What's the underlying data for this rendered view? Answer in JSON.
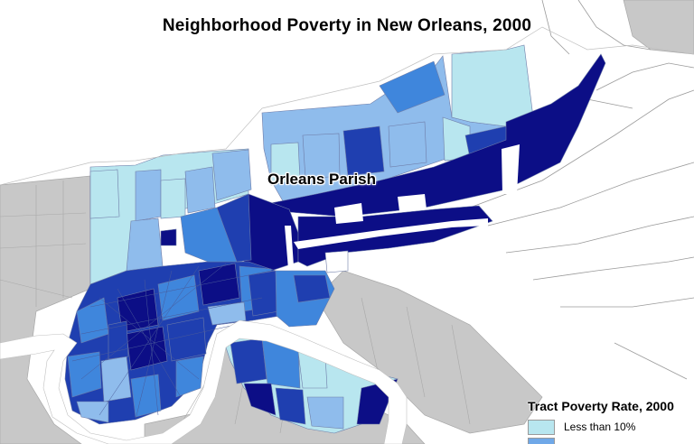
{
  "title": "Neighborhood Poverty in New Orleans, 2000",
  "map_label": "Orleans Parish",
  "legend": {
    "title": "Tract Poverty Rate, 2000",
    "items": [
      {
        "label": "Less than 10%",
        "color": "#b8e6ef"
      },
      {
        "label": "",
        "color": "#6fa8e8"
      }
    ]
  },
  "colors": {
    "water": "#ffffff",
    "outside_parish": "#c8c8c8",
    "tract_lightest": "#b8e6ef",
    "tract_light": "#8fbcec",
    "tract_mid": "#3f86dc",
    "tract_dark": "#1f3fb0",
    "tract_darkest": "#0c0e86",
    "tract_border": "#6e7ca8",
    "marsh": "#ffffff"
  }
}
